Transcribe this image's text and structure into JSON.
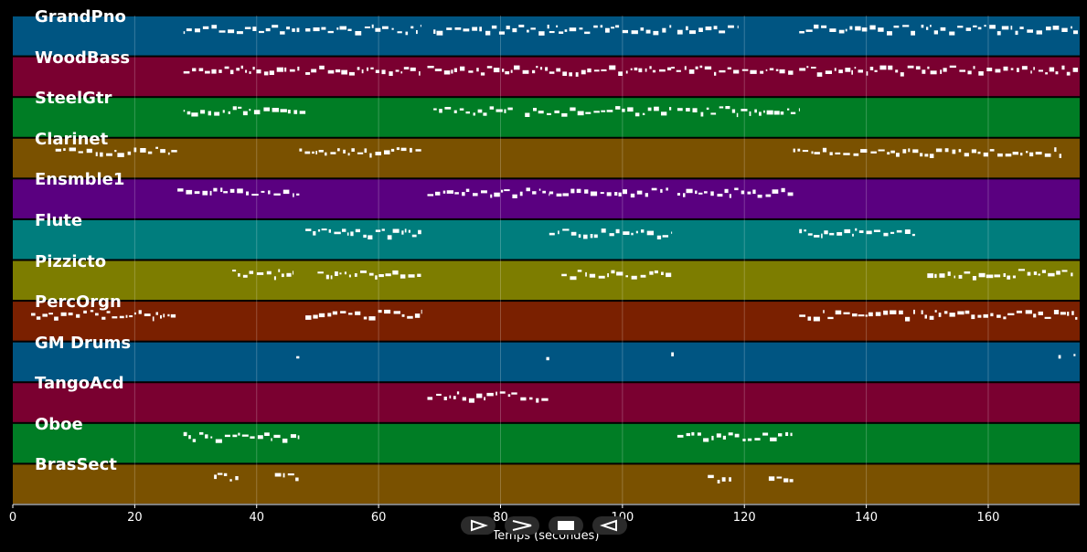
{
  "chart_data": {
    "type": "piano-roll",
    "xlabel": "Temps (secondes)",
    "xlim": [
      0,
      175
    ],
    "xticks": [
      0,
      20,
      40,
      60,
      80,
      100,
      120,
      140,
      160
    ],
    "grid": true,
    "tracks": [
      {
        "name": "GrandPno",
        "color": "#005582",
        "segments": [
          [
            28,
            47
          ],
          [
            48,
            67
          ],
          [
            69,
            88
          ],
          [
            88,
            108
          ],
          [
            109,
            119
          ],
          [
            129,
            148
          ],
          [
            149,
            175
          ]
        ]
      },
      {
        "name": "WoodBass",
        "color": "#7a0030",
        "segments": [
          [
            28,
            47
          ],
          [
            48,
            67
          ],
          [
            68,
            88
          ],
          [
            88,
            108
          ],
          [
            108,
            128
          ],
          [
            129,
            175
          ]
        ]
      },
      {
        "name": "SteelGtr",
        "color": "#007d25",
        "segments": [
          [
            28,
            48
          ],
          [
            69,
            82
          ],
          [
            84,
            108
          ],
          [
            109,
            129
          ]
        ]
      },
      {
        "name": "Clarinet",
        "color": "#7a5100",
        "segments": [
          [
            7,
            27
          ],
          [
            47,
            67
          ],
          [
            128,
            172
          ]
        ]
      },
      {
        "name": "Ensmble1",
        "color": "#5a0080",
        "segments": [
          [
            27,
            47
          ],
          [
            68,
            88
          ],
          [
            88,
            108
          ],
          [
            109,
            128
          ]
        ]
      },
      {
        "name": "Flute",
        "color": "#007d7d",
        "segments": [
          [
            48,
            67
          ],
          [
            88,
            108
          ],
          [
            129,
            148
          ]
        ]
      },
      {
        "name": "Pizzicto",
        "color": "#7d7d00",
        "segments": [
          [
            36,
            46
          ],
          [
            50,
            67
          ],
          [
            90,
            108
          ],
          [
            150,
            174
          ]
        ]
      },
      {
        "name": "PercOrgn",
        "color": "#7a2000",
        "segments": [
          [
            3,
            27
          ],
          [
            48,
            67
          ],
          [
            129,
            148
          ],
          [
            149,
            175
          ]
        ]
      },
      {
        "name": "GM Drums",
        "color": "#005582",
        "segments": [
          [
            46.5,
            47
          ],
          [
            87.5,
            88
          ],
          [
            108,
            108.5
          ],
          [
            171.5,
            172
          ],
          [
            174,
            174.5
          ]
        ]
      },
      {
        "name": "TangoAcd",
        "color": "#7a0030",
        "segments": [
          [
            68,
            88
          ]
        ]
      },
      {
        "name": "Oboe",
        "color": "#007d25",
        "segments": [
          [
            28,
            47
          ],
          [
            109,
            128
          ]
        ]
      },
      {
        "name": "BrasSect",
        "color": "#7a5100",
        "segments": [
          [
            33,
            37
          ],
          [
            43,
            47
          ],
          [
            114,
            118
          ],
          [
            124,
            128
          ]
        ]
      }
    ]
  },
  "controls": [
    {
      "name": "play-button",
      "icon": "play-icon"
    },
    {
      "name": "fast-forward-button",
      "icon": "fast-forward-icon"
    },
    {
      "name": "stop-button",
      "icon": "stop-icon"
    },
    {
      "name": "rewind-button",
      "icon": "rewind-icon"
    }
  ]
}
